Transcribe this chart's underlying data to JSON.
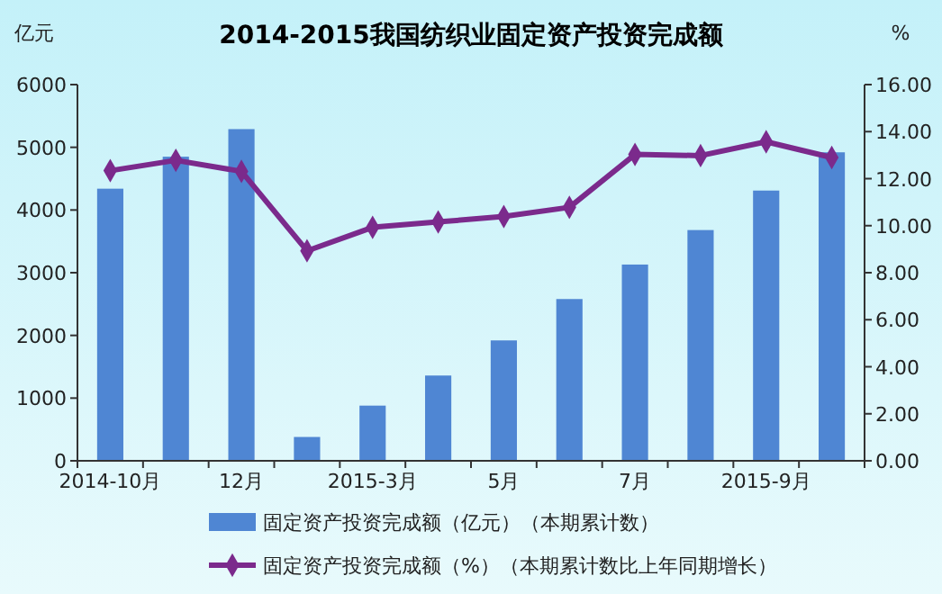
{
  "chart_data": {
    "type": "bar",
    "title": "2014-2015我国纺织业固定资产投资完成额",
    "ylabel": "亿元",
    "y2label": "%",
    "categories": [
      "2014-10月",
      null,
      "12月",
      null,
      "2015-3月",
      null,
      "5月",
      null,
      "7月",
      null,
      "2015-9月",
      null
    ],
    "series": [
      {
        "name": "固定资产投资完成额（亿元）（本期累计数）",
        "color": "#4f86d3",
        "values": [
          4340,
          4850,
          5290,
          380,
          880,
          1360,
          1920,
          2580,
          3130,
          3680,
          4310,
          4920
        ]
      },
      {
        "name": "固定资产投资完成额（%）（本期累计数比上年同期增长）",
        "type": "line",
        "axis": "y2",
        "color": "#7b2a8c",
        "marker": "diamond",
        "values": [
          12.34,
          12.78,
          12.31,
          8.93,
          9.93,
          10.16,
          10.39,
          10.78,
          13.03,
          12.98,
          13.57,
          12.9
        ]
      }
    ],
    "ylim": [
      0,
      6000
    ],
    "yticks": [
      0,
      1000,
      2000,
      3000,
      4000,
      5000,
      6000
    ],
    "y2lim": [
      0,
      16
    ],
    "y2ticks": [
      {
        "value": 0,
        "label": "0.00"
      },
      {
        "value": 2,
        "label": "2.00"
      },
      {
        "value": 4,
        "label": "4.00"
      },
      {
        "value": 6,
        "label": "6.00"
      },
      {
        "value": 8,
        "label": "8.00"
      },
      {
        "value": 10,
        "label": "10.00"
      },
      {
        "value": 12,
        "label": "12.00"
      },
      {
        "value": 14,
        "label": "14.00"
      },
      {
        "value": 16,
        "label": "16.00"
      }
    ],
    "legend": "bottom",
    "grid": false
  }
}
